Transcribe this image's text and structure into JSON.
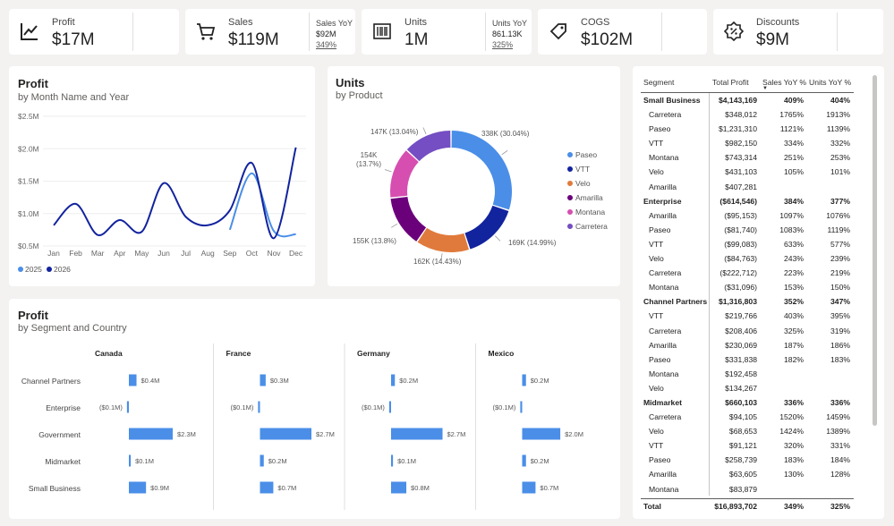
{
  "kpis": [
    {
      "label": "Profit",
      "value": "$17M",
      "icon": "chart-line-icon"
    },
    {
      "label": "Sales",
      "value": "$119M",
      "icon": "cart-icon",
      "yoy_label": "Sales YoY",
      "yoy_value": "$92M",
      "yoy_pct": "349%"
    },
    {
      "label": "Units",
      "value": "1M",
      "icon": "barcode-icon",
      "yoy_label": "Units YoY",
      "yoy_value": "861.13K",
      "yoy_pct": "325%"
    },
    {
      "label": "COGS",
      "value": "$102M",
      "icon": "tag-icon"
    },
    {
      "label": "Discounts",
      "value": "$9M",
      "icon": "discount-badge-icon"
    }
  ],
  "profit_line": {
    "title": "Profit",
    "subtitle": "by Month Name and Year"
  },
  "units_donut": {
    "title": "Units",
    "subtitle": "by Product"
  },
  "profit_bars": {
    "title": "Profit",
    "subtitle": "by Segment and Country"
  },
  "chart_data": [
    {
      "type": "line",
      "title": "Profit",
      "subtitle": "by Month Name and Year",
      "categories": [
        "Jan",
        "Feb",
        "Mar",
        "Apr",
        "May",
        "Jun",
        "Jul",
        "Aug",
        "Sep",
        "Oct",
        "Nov",
        "Dec"
      ],
      "yticks": [
        "$0.5M",
        "$1.0M",
        "$1.5M",
        "$2.0M",
        "$2.5M"
      ],
      "ylim": [
        0.5,
        2.5
      ],
      "series": [
        {
          "name": "2025",
          "color": "#4a8ee8",
          "values": [
            null,
            null,
            null,
            null,
            null,
            null,
            null,
            null,
            0.75,
            1.62,
            0.73,
            0.68
          ]
        },
        {
          "name": "2026",
          "color": "#12239e",
          "values": [
            0.82,
            1.15,
            0.67,
            0.9,
            0.72,
            1.47,
            0.95,
            0.82,
            1.05,
            1.78,
            0.62,
            2.02
          ]
        }
      ],
      "legend": "bottom-left"
    },
    {
      "type": "pie",
      "title": "Units",
      "subtitle": "by Product",
      "series": [
        {
          "name": "Paseo",
          "value": 338,
          "label": "338K (30.04%)",
          "color": "#4a8ee8"
        },
        {
          "name": "VTT",
          "value": 169,
          "label": "169K (14.99%)",
          "color": "#12239e"
        },
        {
          "name": "Velo",
          "value": 162,
          "label": "162K (14.43%)",
          "color": "#e07a3c"
        },
        {
          "name": "Amarilla",
          "value": 155,
          "label": "155K (13.8%)",
          "color": "#6b007b"
        },
        {
          "name": "Montana",
          "value": 154,
          "label": "154K (13.7%)",
          "label_line1": "154K",
          "label_line2": "(13.7%)",
          "color": "#d64eb0"
        },
        {
          "name": "Carretera",
          "value": 147,
          "label": "147K (13.04%)",
          "color": "#744ec2"
        }
      ],
      "legend": "right"
    },
    {
      "type": "bar",
      "title": "Profit",
      "subtitle": "by Segment and Country",
      "categories": [
        "Channel Partners",
        "Enterprise",
        "Government",
        "Midmarket",
        "Small Business"
      ],
      "series": [
        {
          "name": "Canada",
          "values": [
            0.4,
            -0.1,
            2.3,
            0.1,
            0.9
          ],
          "labels": [
            "$0.4M",
            "($0.1M)",
            "$2.3M",
            "$0.1M",
            "$0.9M"
          ]
        },
        {
          "name": "France",
          "values": [
            0.3,
            -0.1,
            2.7,
            0.2,
            0.7
          ],
          "labels": [
            "$0.3M",
            "($0.1M)",
            "$2.7M",
            "$0.2M",
            "$0.7M"
          ]
        },
        {
          "name": "Germany",
          "values": [
            0.2,
            -0.1,
            2.7,
            0.1,
            0.8
          ],
          "labels": [
            "$0.2M",
            "($0.1M)",
            "$2.7M",
            "$0.1M",
            "$0.8M"
          ]
        },
        {
          "name": "Mexico",
          "values": [
            0.2,
            -0.1,
            2.0,
            0.2,
            0.7
          ],
          "labels": [
            "$0.2M",
            "($0.1M)",
            "$2.0M",
            "$0.2M",
            "$0.7M"
          ]
        }
      ],
      "color": "#4a8ee8"
    }
  ],
  "table": {
    "headers": [
      "Segment",
      "Total Profit",
      "Sales YoY %",
      "Units YoY %"
    ],
    "sort_column": "Sales YoY %",
    "rows": [
      {
        "level": 0,
        "name": "Small Business",
        "profit": "$4,143,169",
        "sales": "409%",
        "units": "404%"
      },
      {
        "level": 1,
        "name": "Carretera",
        "profit": "$348,012",
        "sales": "1765%",
        "units": "1913%"
      },
      {
        "level": 1,
        "name": "Paseo",
        "profit": "$1,231,310",
        "sales": "1121%",
        "units": "1139%"
      },
      {
        "level": 1,
        "name": "VTT",
        "profit": "$982,150",
        "sales": "334%",
        "units": "332%"
      },
      {
        "level": 1,
        "name": "Montana",
        "profit": "$743,314",
        "sales": "251%",
        "units": "253%"
      },
      {
        "level": 1,
        "name": "Velo",
        "profit": "$431,103",
        "sales": "105%",
        "units": "101%"
      },
      {
        "level": 1,
        "name": "Amarilla",
        "profit": "$407,281",
        "sales": "",
        "units": ""
      },
      {
        "level": 0,
        "name": "Enterprise",
        "profit": "($614,546)",
        "sales": "384%",
        "units": "377%"
      },
      {
        "level": 1,
        "name": "Amarilla",
        "profit": "($95,153)",
        "sales": "1097%",
        "units": "1076%"
      },
      {
        "level": 1,
        "name": "Paseo",
        "profit": "($81,740)",
        "sales": "1083%",
        "units": "1119%"
      },
      {
        "level": 1,
        "name": "VTT",
        "profit": "($99,083)",
        "sales": "633%",
        "units": "577%"
      },
      {
        "level": 1,
        "name": "Velo",
        "profit": "($84,763)",
        "sales": "243%",
        "units": "239%"
      },
      {
        "level": 1,
        "name": "Carretera",
        "profit": "($222,712)",
        "sales": "223%",
        "units": "219%"
      },
      {
        "level": 1,
        "name": "Montana",
        "profit": "($31,096)",
        "sales": "153%",
        "units": "150%"
      },
      {
        "level": 0,
        "name": "Channel Partners",
        "profit": "$1,316,803",
        "sales": "352%",
        "units": "347%"
      },
      {
        "level": 1,
        "name": "VTT",
        "profit": "$219,766",
        "sales": "403%",
        "units": "395%"
      },
      {
        "level": 1,
        "name": "Carretera",
        "profit": "$208,406",
        "sales": "325%",
        "units": "319%"
      },
      {
        "level": 1,
        "name": "Amarilla",
        "profit": "$230,069",
        "sales": "187%",
        "units": "186%"
      },
      {
        "level": 1,
        "name": "Paseo",
        "profit": "$331,838",
        "sales": "182%",
        "units": "183%"
      },
      {
        "level": 1,
        "name": "Montana",
        "profit": "$192,458",
        "sales": "",
        "units": ""
      },
      {
        "level": 1,
        "name": "Velo",
        "profit": "$134,267",
        "sales": "",
        "units": ""
      },
      {
        "level": 0,
        "name": "Midmarket",
        "profit": "$660,103",
        "sales": "336%",
        "units": "336%"
      },
      {
        "level": 1,
        "name": "Carretera",
        "profit": "$94,105",
        "sales": "1520%",
        "units": "1459%"
      },
      {
        "level": 1,
        "name": "Velo",
        "profit": "$68,653",
        "sales": "1424%",
        "units": "1389%"
      },
      {
        "level": 1,
        "name": "VTT",
        "profit": "$91,121",
        "sales": "320%",
        "units": "331%"
      },
      {
        "level": 1,
        "name": "Paseo",
        "profit": "$258,739",
        "sales": "183%",
        "units": "184%"
      },
      {
        "level": 1,
        "name": "Amarilla",
        "profit": "$63,605",
        "sales": "130%",
        "units": "128%"
      },
      {
        "level": 1,
        "name": "Montana",
        "profit": "$83,879",
        "sales": "",
        "units": ""
      }
    ],
    "total": {
      "name": "Total",
      "profit": "$16,893,702",
      "sales": "349%",
      "units": "325%"
    }
  },
  "colors": {
    "accent": "#4a8ee8",
    "dark_blue": "#12239e",
    "background": "#f3f2f1",
    "card": "#ffffff"
  }
}
